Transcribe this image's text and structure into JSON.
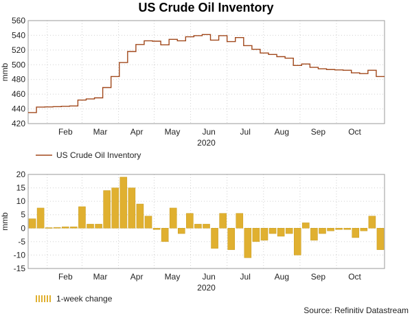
{
  "title": "US Crude Oil Inventory",
  "source": "Source: Refinitiv Datastream",
  "colors": {
    "line": "#a0471a",
    "bar": "#e0b030",
    "bar_stroke": "#c79a1a",
    "grid": "#cfcfcf"
  },
  "chart_data": [
    {
      "type": "line",
      "name": "top-panel",
      "title": "US Crude Oil Inventory",
      "xlabel": "2020",
      "ylabel": "mmb",
      "ylim": [
        420,
        560
      ],
      "yticks": [
        420,
        440,
        460,
        480,
        500,
        520,
        540,
        560
      ],
      "xlim": [
        0,
        43
      ],
      "month_ticks": [
        {
          "label": "Feb",
          "pos": 4.5
        },
        {
          "label": "Mar",
          "pos": 8.7
        },
        {
          "label": "Apr",
          "pos": 13.1
        },
        {
          "label": "May",
          "pos": 17.4
        },
        {
          "label": "Jun",
          "pos": 21.8
        },
        {
          "label": "Jul",
          "pos": 26.2
        },
        {
          "label": "Aug",
          "pos": 30.6
        },
        {
          "label": "Sep",
          "pos": 35.0
        },
        {
          "label": "Oct",
          "pos": 39.4
        }
      ],
      "year_label": "2020",
      "legend": "US Crude Oil Inventory",
      "series": [
        {
          "name": "US Crude Oil Inventory",
          "values": [
            435.0,
            442.5,
            442.7,
            443.0,
            443.5,
            444.0,
            452.0,
            453.5,
            455.0,
            469.0,
            484.0,
            503.0,
            518.0,
            527.5,
            532.5,
            532.0,
            527.0,
            534.5,
            532.5,
            538.0,
            539.5,
            541.0,
            533.5,
            539.5,
            531.5,
            537.0,
            526.0,
            521.0,
            516.0,
            514.0,
            511.0,
            509.0,
            499.0,
            501.0,
            496.5,
            494.5,
            493.5,
            493.0,
            492.5,
            489.0,
            488.0,
            492.5,
            484.0
          ]
        }
      ]
    },
    {
      "type": "bar",
      "name": "bottom-panel",
      "xlabel": "2020",
      "ylabel": "mmb",
      "ylim": [
        -15,
        20
      ],
      "yticks": [
        -15,
        -10,
        -5,
        0,
        5,
        10,
        15,
        20
      ],
      "xlim": [
        0,
        43
      ],
      "year_label": "2020",
      "legend": "1-week change",
      "series": [
        {
          "name": "1-week change",
          "values": [
            3.5,
            7.5,
            0.2,
            0.3,
            0.5,
            0.5,
            8.0,
            1.5,
            1.5,
            14.0,
            15.0,
            19.0,
            15.0,
            9.0,
            4.5,
            -0.5,
            -5.0,
            7.5,
            -2.0,
            5.5,
            1.5,
            1.5,
            -7.5,
            5.5,
            -8.0,
            5.5,
            -11.0,
            -5.0,
            -4.5,
            -2.0,
            -3.0,
            -2.0,
            -10.0,
            2.0,
            -4.5,
            -2.0,
            -1.0,
            -0.5,
            -0.5,
            -3.5,
            -1.0,
            4.5,
            -8.0
          ]
        }
      ]
    }
  ]
}
